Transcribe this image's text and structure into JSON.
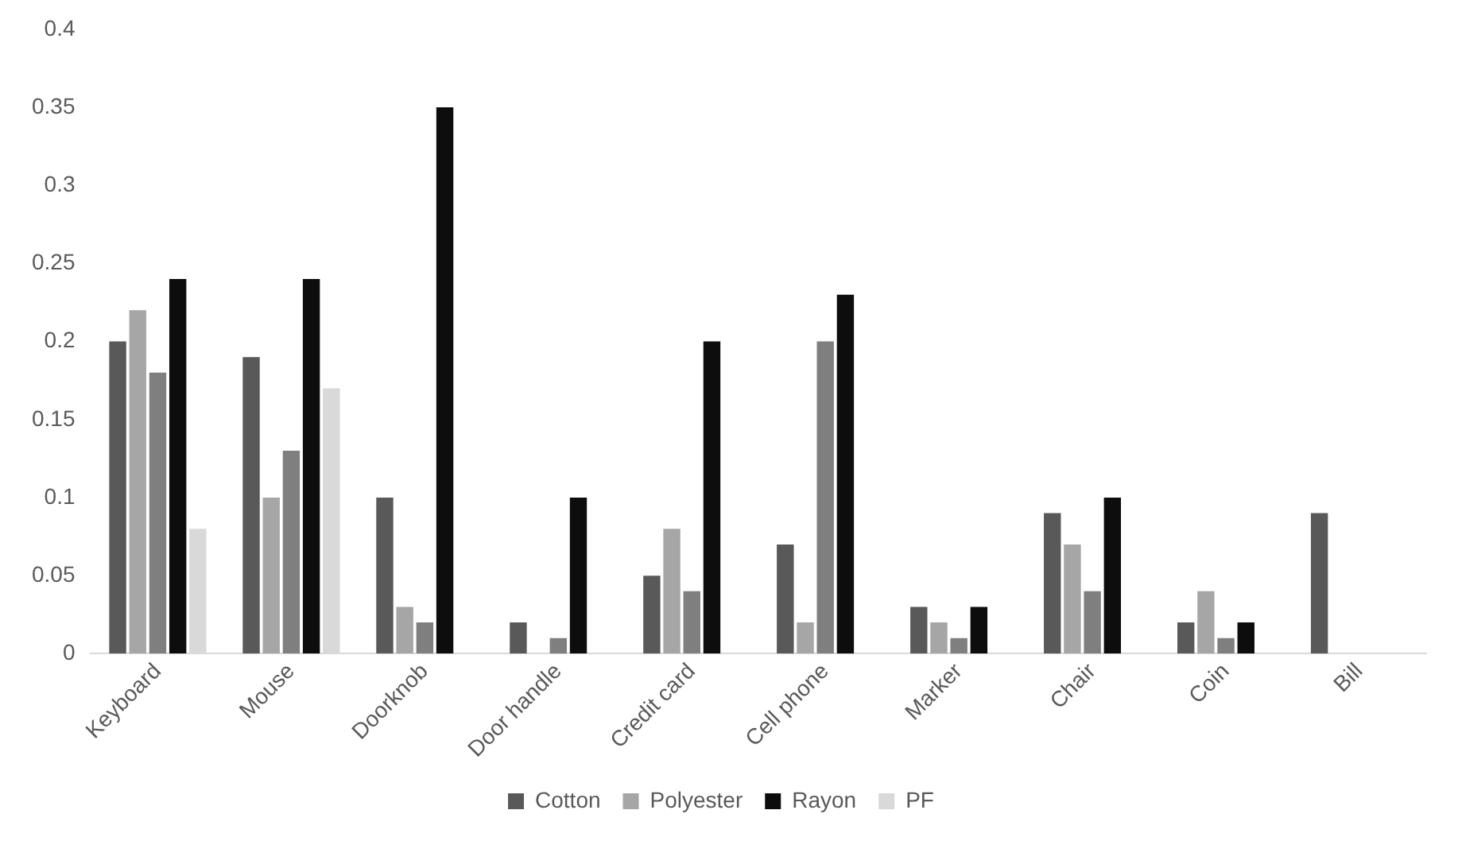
{
  "chart_data": {
    "type": "bar",
    "categories": [
      "Keyboard",
      "Mouse",
      "Doorknob",
      "Door handle",
      "Credit card",
      "Cell phone",
      "Marker",
      "Chair",
      "Coin",
      "Bill"
    ],
    "series": [
      {
        "name": "Cotton",
        "color": "#595959",
        "values": [
          0.2,
          0.19,
          0.1,
          0.02,
          0.05,
          0.07,
          0.03,
          0.09,
          0.02,
          0.09
        ]
      },
      {
        "name": "Polyester",
        "color": "#a6a6a6",
        "values": [
          0.22,
          0.1,
          0.03,
          0,
          0.08,
          0.02,
          0.02,
          0.07,
          0.04,
          0
        ]
      },
      {
        "color": "#7f7f7f",
        "values": [
          0.18,
          0.13,
          0.02,
          0.01,
          0.04,
          0.2,
          0.01,
          0.04,
          0.01,
          0
        ]
      },
      {
        "name": "Rayon",
        "color": "#0d0d0d",
        "values": [
          0.24,
          0.24,
          0.35,
          0.1,
          0.2,
          0.23,
          0.03,
          0.1,
          0.02,
          0
        ]
      },
      {
        "name": "PF",
        "color": "#d9d9d9",
        "values": [
          0.08,
          0.17,
          0,
          0,
          0,
          0,
          0,
          0,
          0,
          0
        ]
      }
    ],
    "ylim": [
      0,
      0.4
    ],
    "yticks": [
      0,
      0.05,
      0.1,
      0.15,
      0.2,
      0.25,
      0.3,
      0.35,
      0.4
    ],
    "grid": false,
    "legend": "bottom"
  }
}
